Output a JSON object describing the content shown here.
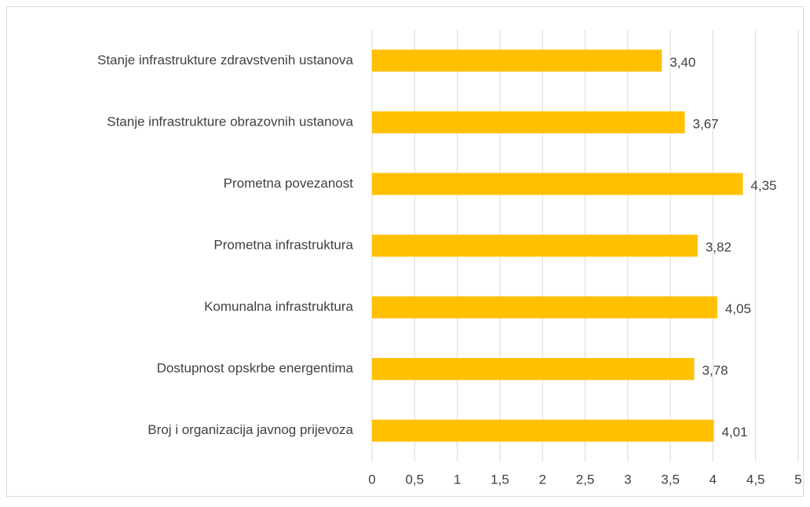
{
  "chart_data": {
    "type": "bar",
    "orientation": "horizontal",
    "categories": [
      "Stanje infrastrukture zdravstvenih ustanova",
      "Stanje infrastrukture obrazovnih ustanova",
      "Prometna povezanost",
      "Prometna infrastruktura",
      "Komunalna infrastruktura",
      "Dostupnost opskrbe energentima",
      "Broj i organizacija javnog prijevoza"
    ],
    "values": [
      3.4,
      3.67,
      4.35,
      3.82,
      4.05,
      3.78,
      4.01
    ],
    "value_labels": [
      "3,40",
      "3,67",
      "4,35",
      "3,82",
      "4,05",
      "3,78",
      "4,01"
    ],
    "color": "#ffc000",
    "xlim": [
      0,
      5
    ],
    "xticks": [
      0,
      {
        "value": 0.5,
        "label": "0,5"
      },
      1,
      {
        "value": 1.5,
        "label": "1,5"
      },
      2,
      {
        "value": 2.5,
        "label": "2,5"
      },
      3,
      {
        "value": 3.5,
        "label": "3,5"
      },
      4,
      {
        "value": 4.5,
        "label": "4,5"
      },
      5
    ],
    "grid": true
  }
}
